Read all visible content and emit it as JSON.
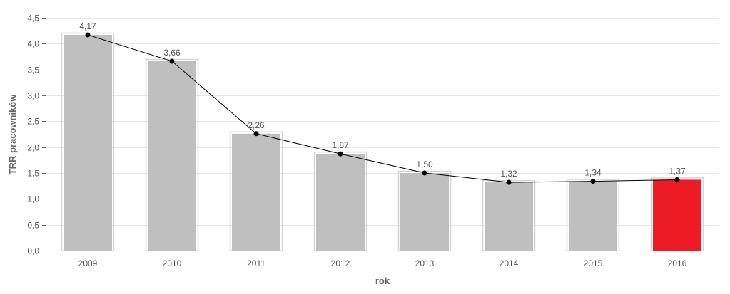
{
  "chart_data": {
    "type": "bar",
    "categories": [
      "2009",
      "2010",
      "2011",
      "2012",
      "2013",
      "2014",
      "2015",
      "2016"
    ],
    "values": [
      4.17,
      3.66,
      2.26,
      1.87,
      1.5,
      1.32,
      1.34,
      1.37
    ],
    "value_labels": [
      "4,17",
      "3,66",
      "2,26",
      "1,87",
      "1,50",
      "1,32",
      "1,34",
      "1,37"
    ],
    "overlay": "line",
    "xlabel": "rok",
    "ylabel": "TRR pracowników",
    "ylim": [
      0,
      4.5
    ],
    "yticks": [
      0,
      0.5,
      1.0,
      1.5,
      2.0,
      2.5,
      3.0,
      3.5,
      4.0,
      4.5
    ],
    "ytick_labels": [
      "0,0",
      "0,5",
      "1,0",
      "1,5",
      "2,0",
      "2,5",
      "3,0",
      "3,5",
      "4,0",
      "4,5"
    ],
    "grid": true,
    "colors": {
      "bar": "#bfbfbf",
      "highlight_bar": "#ed1c24",
      "bar_outline": "#d6d6d6",
      "line": "#000000",
      "marker": "#000000"
    },
    "highlight_category": "2016"
  }
}
